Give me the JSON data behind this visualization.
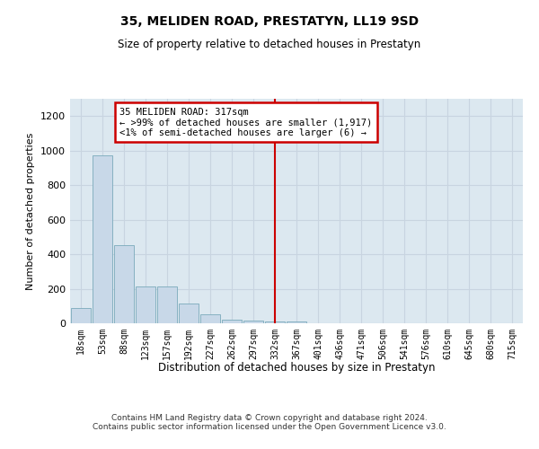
{
  "title": "35, MELIDEN ROAD, PRESTATYN, LL19 9SD",
  "subtitle": "Size of property relative to detached houses in Prestatyn",
  "xlabel": "Distribution of detached houses by size in Prestatyn",
  "ylabel": "Number of detached properties",
  "bar_labels": [
    "18sqm",
    "53sqm",
    "88sqm",
    "123sqm",
    "157sqm",
    "192sqm",
    "227sqm",
    "262sqm",
    "297sqm",
    "332sqm",
    "367sqm",
    "401sqm",
    "436sqm",
    "471sqm",
    "506sqm",
    "541sqm",
    "576sqm",
    "610sqm",
    "645sqm",
    "680sqm",
    "715sqm"
  ],
  "bar_values": [
    90,
    975,
    450,
    215,
    215,
    115,
    50,
    22,
    18,
    12,
    8,
    0,
    0,
    0,
    0,
    0,
    0,
    0,
    0,
    0,
    0
  ],
  "bar_color": "#c8d8e8",
  "bar_edgecolor": "#7aaabb",
  "vline_x": 9.0,
  "vline_color": "#cc0000",
  "annotation_text": "35 MELIDEN ROAD: 317sqm\n← >99% of detached houses are smaller (1,917)\n<1% of semi-detached houses are larger (6) →",
  "annotation_box_edgecolor": "#cc0000",
  "ylim": [
    0,
    1300
  ],
  "yticks": [
    0,
    200,
    400,
    600,
    800,
    1000,
    1200
  ],
  "grid_color": "#c8d4e0",
  "background_color": "#dce8f0",
  "footer": "Contains HM Land Registry data © Crown copyright and database right 2024.\nContains public sector information licensed under the Open Government Licence v3.0."
}
